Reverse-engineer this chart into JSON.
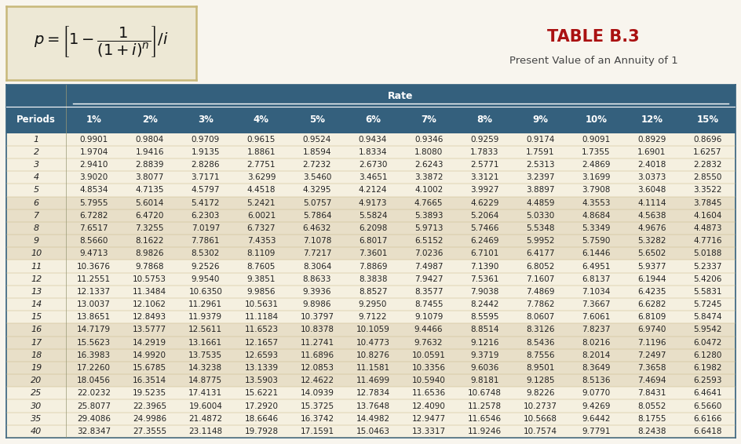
{
  "title": "TABLE B.3",
  "subtitle": "Present Value of an Annuity of 1",
  "rate_label": "Rate",
  "col_headers": [
    "Periods",
    "1%",
    "2%",
    "3%",
    "4%",
    "5%",
    "6%",
    "7%",
    "8%",
    "9%",
    "10%",
    "12%",
    "15%"
  ],
  "periods": [
    1,
    2,
    3,
    4,
    5,
    6,
    7,
    8,
    9,
    10,
    11,
    12,
    13,
    14,
    15,
    16,
    17,
    18,
    19,
    20,
    25,
    30,
    35,
    40
  ],
  "data": [
    [
      0.9901,
      0.9804,
      0.9709,
      0.9615,
      0.9524,
      0.9434,
      0.9346,
      0.9259,
      0.9174,
      0.9091,
      0.8929,
      0.8696
    ],
    [
      1.9704,
      1.9416,
      1.9135,
      1.8861,
      1.8594,
      1.8334,
      1.808,
      1.7833,
      1.7591,
      1.7355,
      1.6901,
      1.6257
    ],
    [
      2.941,
      2.8839,
      2.8286,
      2.7751,
      2.7232,
      2.673,
      2.6243,
      2.5771,
      2.5313,
      2.4869,
      2.4018,
      2.2832
    ],
    [
      3.902,
      3.8077,
      3.7171,
      3.6299,
      3.546,
      3.4651,
      3.3872,
      3.3121,
      3.2397,
      3.1699,
      3.0373,
      2.855
    ],
    [
      4.8534,
      4.7135,
      4.5797,
      4.4518,
      4.3295,
      4.2124,
      4.1002,
      3.9927,
      3.8897,
      3.7908,
      3.6048,
      3.3522
    ],
    [
      5.7955,
      5.6014,
      5.4172,
      5.2421,
      5.0757,
      4.9173,
      4.7665,
      4.6229,
      4.4859,
      4.3553,
      4.1114,
      3.7845
    ],
    [
      6.7282,
      6.472,
      6.2303,
      6.0021,
      5.7864,
      5.5824,
      5.3893,
      5.2064,
      5.033,
      4.8684,
      4.5638,
      4.1604
    ],
    [
      7.6517,
      7.3255,
      7.0197,
      6.7327,
      6.4632,
      6.2098,
      5.9713,
      5.7466,
      5.5348,
      5.3349,
      4.9676,
      4.4873
    ],
    [
      8.566,
      8.1622,
      7.7861,
      7.4353,
      7.1078,
      6.8017,
      6.5152,
      6.2469,
      5.9952,
      5.759,
      5.3282,
      4.7716
    ],
    [
      9.4713,
      8.9826,
      8.5302,
      8.1109,
      7.7217,
      7.3601,
      7.0236,
      6.7101,
      6.4177,
      6.1446,
      5.6502,
      5.0188
    ],
    [
      10.3676,
      9.7868,
      9.2526,
      8.7605,
      8.3064,
      7.8869,
      7.4987,
      7.139,
      6.8052,
      6.4951,
      5.9377,
      5.2337
    ],
    [
      11.2551,
      10.5753,
      9.954,
      9.3851,
      8.8633,
      8.3838,
      7.9427,
      7.5361,
      7.1607,
      6.8137,
      6.1944,
      5.4206
    ],
    [
      12.1337,
      11.3484,
      10.635,
      9.9856,
      9.3936,
      8.8527,
      8.3577,
      7.9038,
      7.4869,
      7.1034,
      6.4235,
      5.5831
    ],
    [
      13.0037,
      12.1062,
      11.2961,
      10.5631,
      9.8986,
      9.295,
      8.7455,
      8.2442,
      7.7862,
      7.3667,
      6.6282,
      5.7245
    ],
    [
      13.8651,
      12.8493,
      11.9379,
      11.1184,
      10.3797,
      9.7122,
      9.1079,
      8.5595,
      8.0607,
      7.6061,
      6.8109,
      5.8474
    ],
    [
      14.7179,
      13.5777,
      12.5611,
      11.6523,
      10.8378,
      10.1059,
      9.4466,
      8.8514,
      8.3126,
      7.8237,
      6.974,
      5.9542
    ],
    [
      15.5623,
      14.2919,
      13.1661,
      12.1657,
      11.2741,
      10.4773,
      9.7632,
      9.1216,
      8.5436,
      8.0216,
      7.1196,
      6.0472
    ],
    [
      16.3983,
      14.992,
      13.7535,
      12.6593,
      11.6896,
      10.8276,
      10.0591,
      9.3719,
      8.7556,
      8.2014,
      7.2497,
      6.128
    ],
    [
      17.226,
      15.6785,
      14.3238,
      13.1339,
      12.0853,
      11.1581,
      10.3356,
      9.6036,
      8.9501,
      8.3649,
      7.3658,
      6.1982
    ],
    [
      18.0456,
      16.3514,
      14.8775,
      13.5903,
      12.4622,
      11.4699,
      10.594,
      9.8181,
      9.1285,
      8.5136,
      7.4694,
      6.2593
    ],
    [
      22.0232,
      19.5235,
      17.4131,
      15.6221,
      14.0939,
      12.7834,
      11.6536,
      10.6748,
      9.8226,
      9.077,
      7.8431,
      6.4641
    ],
    [
      25.8077,
      22.3965,
      19.6004,
      17.292,
      15.3725,
      13.7648,
      12.409,
      11.2578,
      10.2737,
      9.4269,
      8.0552,
      6.566
    ],
    [
      29.4086,
      24.9986,
      21.4872,
      18.6646,
      16.3742,
      14.4982,
      12.9477,
      11.6546,
      10.5668,
      9.6442,
      8.1755,
      6.6166
    ],
    [
      32.8347,
      27.3555,
      23.1148,
      19.7928,
      17.1591,
      15.0463,
      13.3317,
      11.9246,
      10.7574,
      9.7791,
      8.2438,
      6.6418
    ]
  ],
  "header_bg": "#34607d",
  "header_text": "#ffffff",
  "shaded_bg": "#e8dfc8",
  "light_bg": "#f5f0e0",
  "white_bg": "#ffffff",
  "formula_bg": "#ede8d5",
  "formula_border": "#c8b87a",
  "title_color": "#aa1111",
  "subtitle_color": "#444444",
  "fig_bg": "#f8f5ee",
  "table_border": "#34607d",
  "shaded_periods": [
    6,
    7,
    8,
    9,
    10,
    16,
    17,
    18,
    19,
    20
  ]
}
